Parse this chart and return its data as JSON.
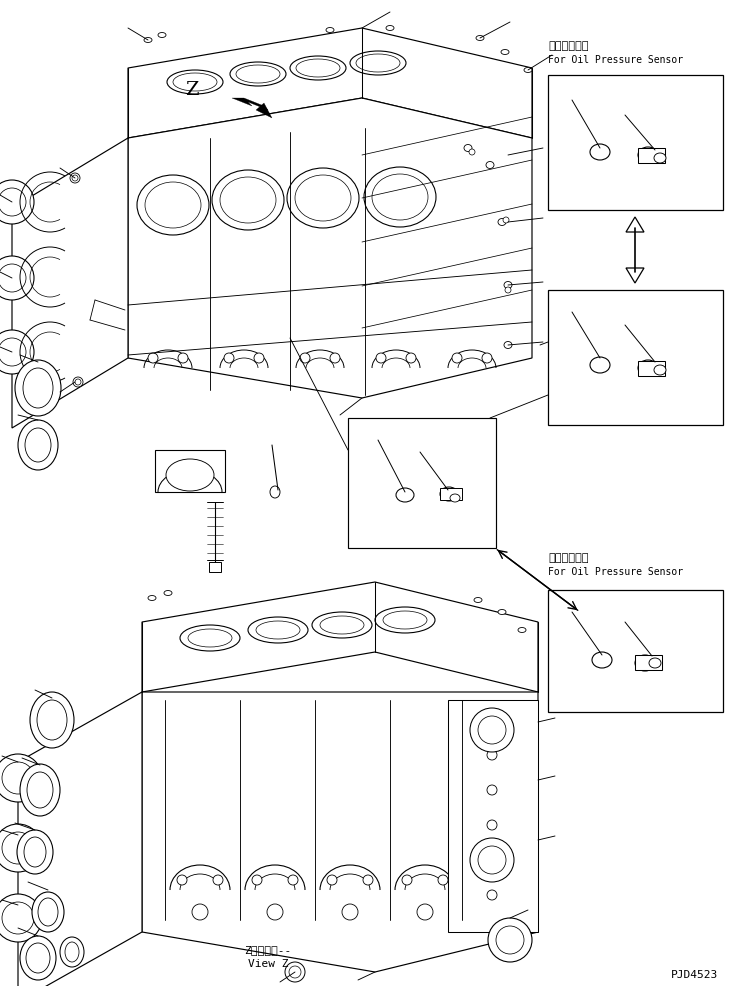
{
  "background_color": "#ffffff",
  "fig_width": 7.34,
  "fig_height": 9.86,
  "dpi": 100,
  "label_top_jp": "油圧センサ用",
  "label_top_en": "For Oil Pressure Sensor",
  "label_bot_jp": "油圧センサ用",
  "label_bot_en": "For Oil Pressure Sensor",
  "view_z_jp": "Z　視　　--",
  "view_z_en": "View Z",
  "z_label": "Z",
  "part_number": "PJD4523"
}
